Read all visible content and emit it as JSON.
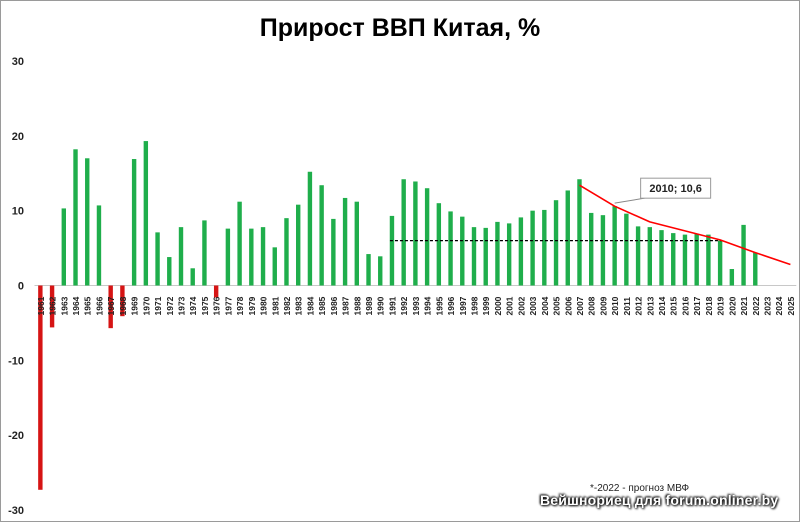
{
  "chart_data": {
    "type": "bar",
    "title": "Прирост ВВП Китая, %",
    "ylim": [
      -30,
      30
    ],
    "yticks": [
      "30",
      "20",
      "10",
      "0",
      "-10",
      "-20",
      "-30"
    ],
    "grid": false,
    "colors": {
      "positive": "#1fae4b",
      "negative": "#d61414",
      "trend": "#ff0000",
      "reference": "#000000"
    },
    "categories": [
      "1961",
      "1962",
      "1963",
      "1964",
      "1965",
      "1966",
      "1967",
      "1968",
      "1969",
      "1970",
      "1971",
      "1972",
      "1973",
      "1974",
      "1975",
      "1976",
      "1977",
      "1978",
      "1979",
      "1980",
      "1981",
      "1982",
      "1983",
      "1984",
      "1985",
      "1986",
      "1987",
      "1988",
      "1989",
      "1990",
      "1991",
      "1992",
      "1993",
      "1994",
      "1995",
      "1996",
      "1997",
      "1998",
      "1999",
      "2000",
      "2001",
      "2002",
      "2003",
      "2004",
      "2005",
      "2006",
      "2007",
      "2008",
      "2009",
      "2010",
      "2011",
      "2012",
      "2013",
      "2014",
      "2015",
      "2016",
      "2017",
      "2018",
      "2019",
      "2020",
      "2021",
      "2022",
      "2023",
      "2024",
      "2025"
    ],
    "values": [
      -27.3,
      -5.6,
      10.3,
      18.2,
      17.0,
      10.7,
      -5.7,
      -4.1,
      16.9,
      19.3,
      7.1,
      3.8,
      7.8,
      2.3,
      8.7,
      -1.6,
      7.6,
      11.2,
      7.6,
      7.8,
      5.1,
      9.0,
      10.8,
      15.2,
      13.4,
      8.9,
      11.7,
      11.2,
      4.2,
      3.9,
      9.3,
      14.2,
      13.9,
      13.0,
      11.0,
      9.9,
      9.2,
      7.8,
      7.7,
      8.5,
      8.3,
      9.1,
      10.0,
      10.1,
      11.4,
      12.7,
      14.2,
      9.7,
      9.4,
      10.6,
      9.6,
      7.9,
      7.8,
      7.4,
      7.0,
      6.8,
      6.9,
      6.8,
      6.0,
      2.2,
      8.1,
      4.4,
      null,
      null,
      null
    ],
    "trend_line": {
      "x": [
        "2007",
        "2010",
        "2013",
        "2016",
        "2019",
        "2022",
        "2025"
      ],
      "y": [
        13.4,
        10.6,
        8.5,
        7.3,
        6.1,
        4.4,
        2.8
      ]
    },
    "reference_line": {
      "x_start": "1991",
      "x_end": "2019",
      "y": 6.0
    },
    "annotation": {
      "text": "2010;   10,6",
      "category": "2010",
      "value": 10.6
    },
    "footnote": "*-2022 - прогноз МВФ",
    "watermark": "Вейшнориец для forum.onliner.by"
  }
}
